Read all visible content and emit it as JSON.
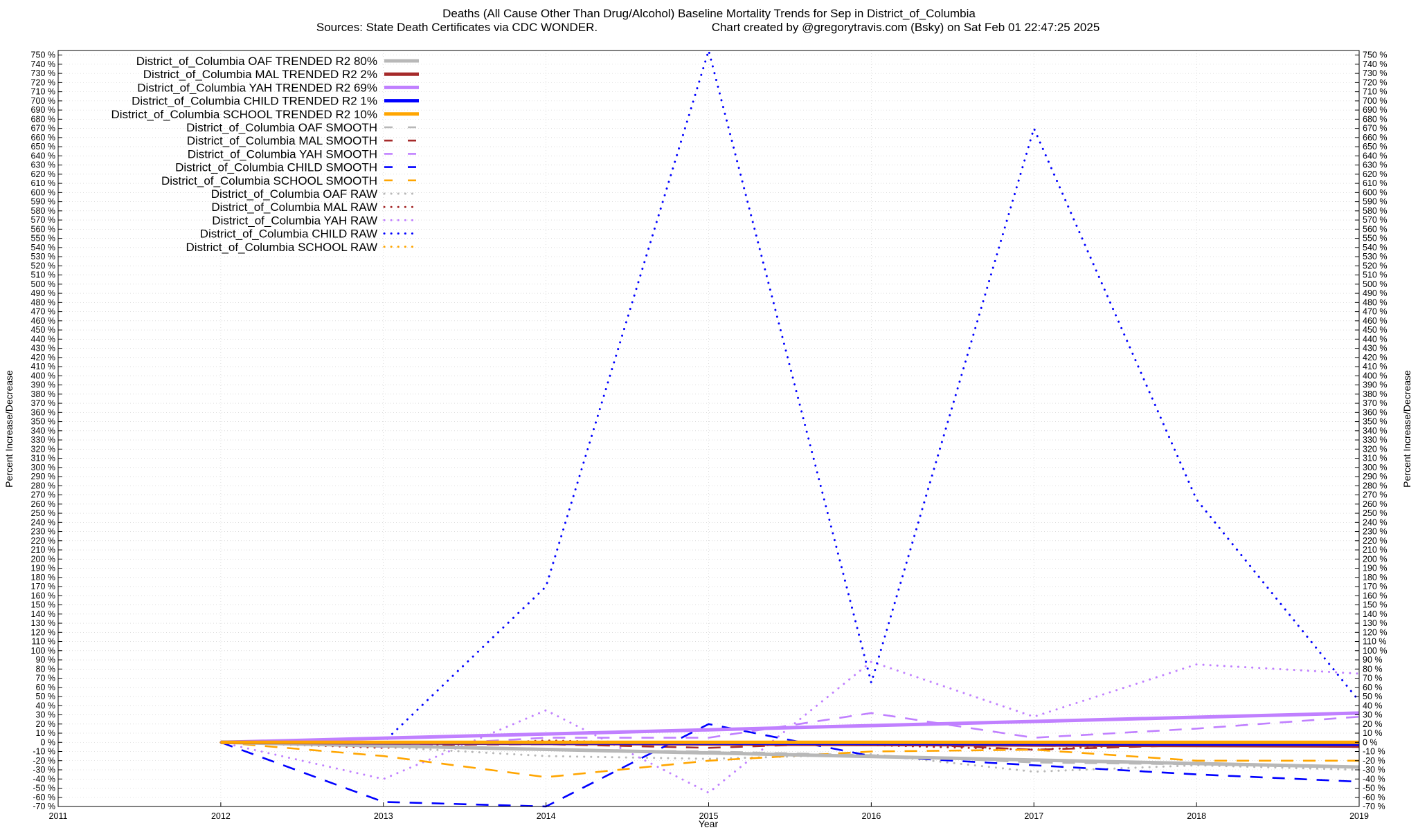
{
  "chart_data": {
    "type": "line",
    "title": "Deaths (All Cause Other Than Drug/Alcohol)  Baseline Mortality Trends for Sep in District_of_Columbia",
    "subtitle_left": "Sources: State Death Certificates via CDC WONDER.",
    "subtitle_right": "Chart created by @gregorytravis.com (Bsky) on Sat Feb 01 22:47:25 2025",
    "xlabel": "Year",
    "ylabel": "Percent Increase/Decrease",
    "ylabel_right": "Percent Increase/Decrease",
    "xlim": [
      2011,
      2019
    ],
    "ylim": [
      -70,
      755
    ],
    "y_tick_step": 10,
    "y_tick_suffix": " %",
    "x_ticks": [
      "2011",
      "2012",
      "2013",
      "2014",
      "2015",
      "2016",
      "2017",
      "2018",
      "2019"
    ],
    "grid": true,
    "legend_position": "top-left",
    "series": [
      {
        "name": "District_of_Columbia OAF TRENDED R2",
        "r2": "80%",
        "style": "solid",
        "color": "#b8b8b8",
        "x": [
          2012,
          2019
        ],
        "y": [
          0,
          -27
        ]
      },
      {
        "name": "District_of_Columbia MAL TRENDED R2",
        "r2": " 2%",
        "style": "solid",
        "color": "#a52a2a",
        "x": [
          2012,
          2019
        ],
        "y": [
          0,
          -4
        ]
      },
      {
        "name": "District_of_Columbia YAH TRENDED R2",
        "r2": "69%",
        "style": "solid",
        "color": "#c080ff",
        "x": [
          2012,
          2019
        ],
        "y": [
          0,
          32
        ]
      },
      {
        "name": "District_of_Columbia CHILD TRENDED R2",
        "r2": " 1%",
        "style": "solid",
        "color": "#0000ff",
        "x": [
          2012,
          2019
        ],
        "y": [
          0,
          -2
        ]
      },
      {
        "name": "District_of_Columbia SCHOOL TRENDED R2",
        "r2": "10%",
        "style": "solid",
        "color": "#ffa500",
        "x": [
          2012,
          2019
        ],
        "y": [
          0,
          0
        ]
      },
      {
        "name": "District_of_Columbia OAF SMOOTH",
        "r2": "",
        "style": "dashed",
        "color": "#b8b8b8",
        "x": [
          2012,
          2013,
          2014,
          2015,
          2016,
          2017,
          2018,
          2019
        ],
        "y": [
          0,
          -4,
          -8,
          -10,
          -14,
          -22,
          -24,
          -27
        ]
      },
      {
        "name": "District_of_Columbia MAL SMOOTH",
        "r2": "",
        "style": "dashed",
        "color": "#a52a2a",
        "x": [
          2012,
          2013,
          2014,
          2015,
          2016,
          2017,
          2018,
          2019
        ],
        "y": [
          0,
          -3,
          -2,
          -6,
          0,
          -8,
          -3,
          -5
        ]
      },
      {
        "name": "District_of_Columbia YAH SMOOTH",
        "r2": "",
        "style": "dashed",
        "color": "#c080ff",
        "x": [
          2012,
          2013,
          2014,
          2015,
          2016,
          2017,
          2018,
          2019
        ],
        "y": [
          0,
          -5,
          5,
          5,
          32,
          5,
          15,
          28
        ]
      },
      {
        "name": "District_of_Columbia CHILD SMOOTH",
        "r2": "",
        "style": "dashed",
        "color": "#0000ff",
        "x": [
          2012,
          2013,
          2014,
          2015,
          2016,
          2017,
          2018,
          2019
        ],
        "y": [
          0,
          -65,
          -70,
          20,
          -15,
          -25,
          -35,
          -43
        ]
      },
      {
        "name": "District_of_Columbia SCHOOL SMOOTH",
        "r2": "",
        "style": "dashed",
        "color": "#ffa500",
        "x": [
          2012,
          2013,
          2014,
          2015,
          2016,
          2017,
          2018,
          2019
        ],
        "y": [
          0,
          -15,
          -38,
          -20,
          -10,
          -8,
          -20,
          -20
        ]
      },
      {
        "name": "District_of_Columbia OAF RAW",
        "r2": "",
        "style": "dotted",
        "color": "#b8b8b8",
        "x": [
          2012,
          2013,
          2014,
          2015,
          2016,
          2017,
          2018,
          2019
        ],
        "y": [
          0,
          -5,
          -15,
          -18,
          -13,
          -32,
          -25,
          -30
        ]
      },
      {
        "name": "District_of_Columbia MAL RAW",
        "r2": "",
        "style": "dotted",
        "color": "#a52a2a",
        "x": [
          2012,
          2013,
          2014,
          2015,
          2016,
          2017,
          2018,
          2019
        ],
        "y": [
          0,
          -6,
          2,
          -2,
          -3,
          -8,
          0,
          -5
        ]
      },
      {
        "name": "District_of_Columbia YAH RAW",
        "r2": "",
        "style": "dotted",
        "color": "#c080ff",
        "x": [
          2012,
          2013,
          2014,
          2015,
          2016,
          2017,
          2018,
          2019
        ],
        "y": [
          0,
          -40,
          35,
          -55,
          88,
          28,
          85,
          75
        ]
      },
      {
        "name": "District_of_Columbia CHILD RAW",
        "r2": "",
        "style": "dotted",
        "color": "#0000ff",
        "x": [
          2012,
          2013,
          2014,
          2015,
          2016,
          2017,
          2018,
          2019
        ],
        "y": [
          0,
          0,
          170,
          755,
          65,
          670,
          265,
          45
        ]
      },
      {
        "name": "District_of_Columbia SCHOOL RAW",
        "r2": "",
        "style": "dotted",
        "color": "#ffa500",
        "x": [
          2012,
          2013,
          2014,
          2015,
          2016,
          2017,
          2018,
          2019
        ],
        "y": [
          0,
          0,
          0,
          0,
          0,
          0,
          0,
          0
        ]
      }
    ]
  }
}
